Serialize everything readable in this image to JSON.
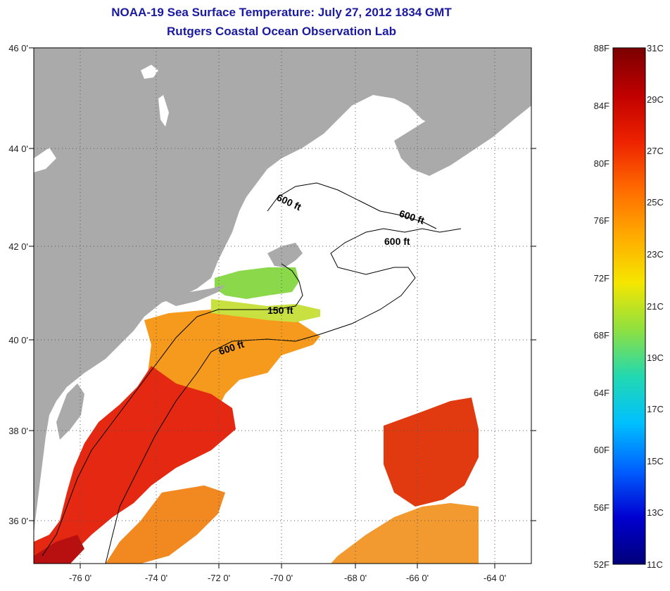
{
  "title": {
    "line1": "NOAA-19 Sea Surface Temperature:  July 27, 2012 1834 GMT",
    "line2": "Rutgers Coastal Ocean Observation Lab"
  },
  "map": {
    "lat_labels": [
      "46 0'",
      "44 0'",
      "42 0'",
      "40 0'",
      "38 0'",
      "36 0'"
    ],
    "lon_labels": [
      "-76 0'",
      "-74 0'",
      "-72 0'",
      "-70 0'",
      "-68 0'",
      "-66 0'",
      "-64 0'"
    ],
    "contour_labels": [
      "600 ft",
      "600 ft",
      "600 ft",
      "150 ft",
      "600 ft"
    ],
    "colors": {
      "land": "#aaaaaa",
      "no_data": "#ffffff"
    }
  },
  "colorbar": {
    "fahrenheit_labels": [
      "88F",
      "84F",
      "80F",
      "76F",
      "72F",
      "68F",
      "64F",
      "60F",
      "56F",
      "52F"
    ],
    "celsius_labels": [
      "31C",
      "29C",
      "27C",
      "25C",
      "23C",
      "21C",
      "19C",
      "17C",
      "15C",
      "13C",
      "11C"
    ],
    "gradient_stops": [
      "#7a0000",
      "#c00000",
      "#ee2200",
      "#ff6a00",
      "#ffaa00",
      "#f5e600",
      "#8fe040",
      "#22d8b0",
      "#00c0ff",
      "#0060ff",
      "#0000d0",
      "#00007a"
    ]
  }
}
